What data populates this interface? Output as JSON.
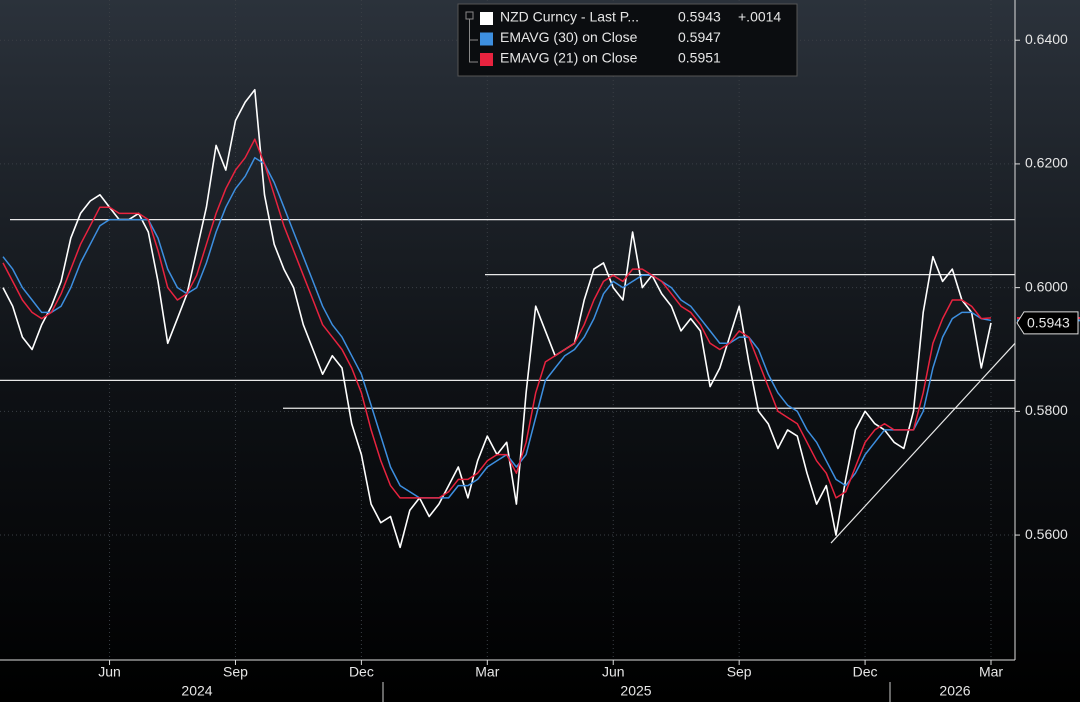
{
  "chart_data": {
    "type": "line",
    "categories": [
      null,
      null,
      null,
      null,
      null,
      null,
      null,
      null,
      null,
      null,
      null,
      "Jun",
      null,
      null,
      null,
      null,
      null,
      null,
      null,
      null,
      null,
      null,
      null,
      null,
      "Sep",
      null,
      null,
      null,
      null,
      null,
      null,
      null,
      null,
      null,
      null,
      null,
      null,
      "Dec",
      null,
      null,
      null,
      null,
      null,
      null,
      null,
      null,
      null,
      null,
      null,
      null,
      "Mar",
      null,
      null,
      null,
      null,
      null,
      null,
      null,
      null,
      null,
      null,
      null,
      null,
      "Jun",
      null,
      null,
      null,
      null,
      null,
      null,
      null,
      null,
      null,
      null,
      null,
      null,
      "Sep",
      null,
      null,
      null,
      null,
      null,
      null,
      null,
      null,
      null,
      null,
      null,
      null,
      "Dec",
      null,
      null,
      null,
      null,
      null,
      null,
      null,
      null,
      null,
      null,
      null,
      null,
      "Mar"
    ],
    "years": [
      "2024",
      "2025",
      "2026"
    ],
    "series": [
      {
        "name": "NZD Curncy - Last P...",
        "legend_value": "0.5943",
        "change": "+.0014",
        "color": "#ffffff",
        "values": [
          0.6,
          0.597,
          0.592,
          0.59,
          0.594,
          0.597,
          0.601,
          0.608,
          0.612,
          0.614,
          0.615,
          0.613,
          0.611,
          0.611,
          0.612,
          0.609,
          0.601,
          0.591,
          0.595,
          0.599,
          0.606,
          0.613,
          0.623,
          0.619,
          0.627,
          0.63,
          0.632,
          0.615,
          0.607,
          0.603,
          0.6,
          0.594,
          0.59,
          0.586,
          0.589,
          0.587,
          0.578,
          0.573,
          0.565,
          0.562,
          0.563,
          0.558,
          0.564,
          0.566,
          0.563,
          0.565,
          0.568,
          0.571,
          0.566,
          0.572,
          0.576,
          0.573,
          0.575,
          0.565,
          0.583,
          0.597,
          0.593,
          0.589,
          0.59,
          0.591,
          0.598,
          0.603,
          0.604,
          0.6,
          0.598,
          0.609,
          0.6,
          0.602,
          0.599,
          0.597,
          0.593,
          0.595,
          0.593,
          0.584,
          0.587,
          0.592,
          0.597,
          0.588,
          0.58,
          0.578,
          0.574,
          0.577,
          0.576,
          0.57,
          0.565,
          0.568,
          0.56,
          0.569,
          0.577,
          0.58,
          0.578,
          0.577,
          0.575,
          0.574,
          0.58,
          0.596,
          0.605,
          0.601,
          0.603,
          0.598,
          0.596,
          0.587,
          0.5943
        ]
      },
      {
        "name": "EMAVG (30)  on Close",
        "legend_value": "0.5947",
        "color": "#3d8fe0",
        "values": [
          0.605,
          0.603,
          0.6,
          0.598,
          0.596,
          0.596,
          0.597,
          0.6,
          0.604,
          0.607,
          0.61,
          0.611,
          0.611,
          0.611,
          0.611,
          0.611,
          0.608,
          0.603,
          0.6,
          0.599,
          0.6,
          0.604,
          0.609,
          0.613,
          0.616,
          0.618,
          0.621,
          0.62,
          0.617,
          0.613,
          0.609,
          0.605,
          0.601,
          0.597,
          0.594,
          0.592,
          0.589,
          0.586,
          0.581,
          0.576,
          0.571,
          0.568,
          0.567,
          0.566,
          0.566,
          0.566,
          0.566,
          0.568,
          0.568,
          0.569,
          0.571,
          0.572,
          0.573,
          0.571,
          0.573,
          0.579,
          0.585,
          0.587,
          0.589,
          0.59,
          0.592,
          0.595,
          0.599,
          0.601,
          0.6,
          0.601,
          0.602,
          0.602,
          0.601,
          0.6,
          0.598,
          0.597,
          0.595,
          0.593,
          0.591,
          0.591,
          0.592,
          0.592,
          0.59,
          0.586,
          0.583,
          0.581,
          0.58,
          0.577,
          0.575,
          0.572,
          0.569,
          0.568,
          0.57,
          0.573,
          0.575,
          0.577,
          0.577,
          0.577,
          0.577,
          0.58,
          0.587,
          0.592,
          0.595,
          0.596,
          0.596,
          0.595,
          0.5947
        ]
      },
      {
        "name": "EMAVG (21)  on Close",
        "legend_value": "0.5951",
        "color": "#e8233f",
        "values": [
          0.604,
          0.601,
          0.598,
          0.596,
          0.595,
          0.596,
          0.599,
          0.603,
          0.607,
          0.61,
          0.613,
          0.613,
          0.612,
          0.612,
          0.612,
          0.611,
          0.606,
          0.6,
          0.598,
          0.599,
          0.602,
          0.607,
          0.612,
          0.616,
          0.619,
          0.621,
          0.624,
          0.62,
          0.615,
          0.61,
          0.606,
          0.602,
          0.598,
          0.594,
          0.592,
          0.59,
          0.587,
          0.583,
          0.577,
          0.572,
          0.568,
          0.566,
          0.566,
          0.566,
          0.566,
          0.566,
          0.567,
          0.569,
          0.569,
          0.57,
          0.572,
          0.573,
          0.573,
          0.57,
          0.575,
          0.583,
          0.588,
          0.589,
          0.59,
          0.591,
          0.594,
          0.598,
          0.601,
          0.602,
          0.601,
          0.603,
          0.603,
          0.602,
          0.601,
          0.599,
          0.597,
          0.596,
          0.594,
          0.591,
          0.59,
          0.591,
          0.593,
          0.592,
          0.588,
          0.584,
          0.58,
          0.579,
          0.578,
          0.575,
          0.572,
          0.57,
          0.566,
          0.567,
          0.571,
          0.575,
          0.577,
          0.578,
          0.577,
          0.577,
          0.577,
          0.583,
          0.591,
          0.595,
          0.598,
          0.598,
          0.597,
          0.595,
          0.5951
        ]
      }
    ],
    "ylim": [
      0.5398,
      0.6465
    ],
    "yticks": [
      {
        "value": 0.56,
        "label": "0.5600"
      },
      {
        "value": 0.58,
        "label": "0.5800"
      },
      {
        "value": 0.6,
        "label": "0.6000"
      },
      {
        "value": 0.62,
        "label": "0.6200"
      },
      {
        "value": 0.64,
        "label": "0.6400"
      }
    ],
    "grid": true,
    "hlines": [
      0.611,
      0.6021,
      0.585,
      0.5805
    ],
    "trendline": [
      0.5587,
      0.591
    ]
  }
}
